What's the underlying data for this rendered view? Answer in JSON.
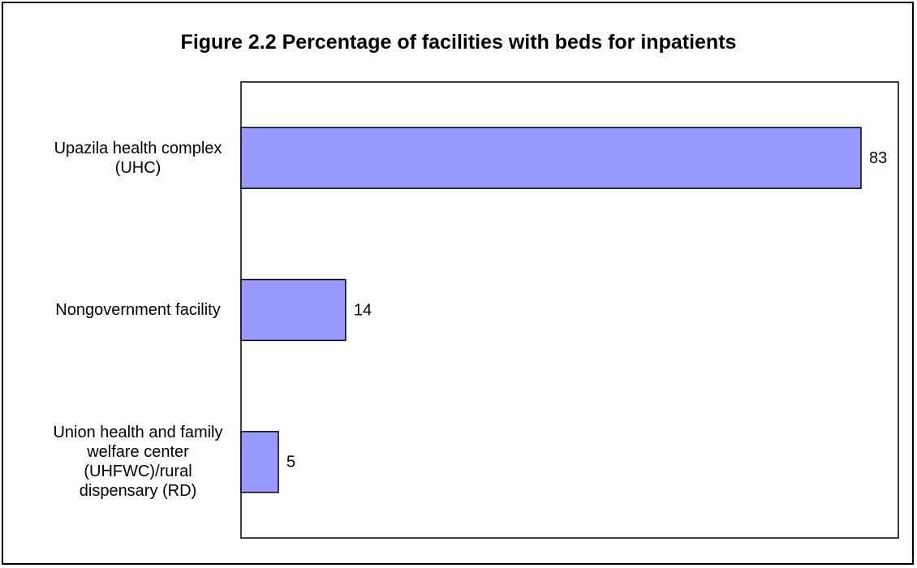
{
  "chart_data": {
    "type": "bar",
    "orientation": "horizontal",
    "title": "Figure 2.2 Percentage of facilities with beds for inpatients",
    "categories": [
      "Upazila health complex (UHC)",
      "Nongovernment facility",
      "Union health and family welfare center (UHFWC)/rural dispensary (RD)"
    ],
    "values": [
      83,
      14,
      5
    ],
    "color": "#9999ff",
    "xlim": [
      0,
      88
    ]
  }
}
